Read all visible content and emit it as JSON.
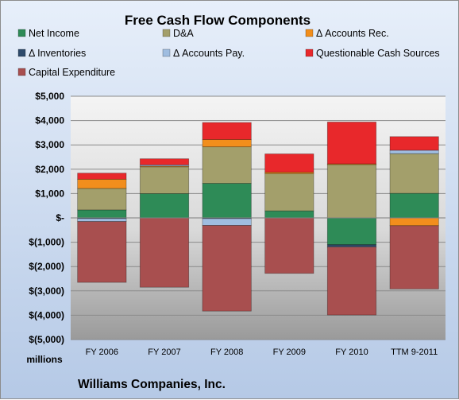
{
  "chart_data": {
    "type": "bar",
    "stacked": true,
    "title": "Free Cash Flow Components",
    "units": "millions",
    "footer": "Williams Companies, Inc.",
    "categories": [
      "FY 2006",
      "FY 2007",
      "FY 2008",
      "FY 2009",
      "FY 2010",
      "TTM 9-2011"
    ],
    "ylim": [
      -5000,
      5000
    ],
    "yticks": [
      5000,
      4000,
      3000,
      2000,
      1000,
      0,
      -1000,
      -2000,
      -3000,
      -4000,
      -5000
    ],
    "ytick_labels": [
      "$5,000",
      "$4,000",
      "$3,000",
      "$2,000",
      "$1,000",
      "$-",
      "$(1,000)",
      "$(2,000)",
      "$(3,000)",
      "$(4,000)",
      "$(5,000)"
    ],
    "grid": true,
    "legend_position": "top",
    "series": [
      {
        "name": "Net Income",
        "color": "#2e8b57",
        "values": [
          330,
          1000,
          1420,
          290,
          -1100,
          1010
        ]
      },
      {
        "name": "D&A",
        "color": "#a39f6b",
        "values": [
          880,
          1100,
          1500,
          1530,
          2200,
          1630
        ]
      },
      {
        "name": "Δ Accounts Rec.",
        "color": "#f28e1c",
        "values": [
          380,
          30,
          300,
          60,
          20,
          -320
        ]
      },
      {
        "name": "Δ Inventories",
        "color": "#2e4a6b",
        "values": [
          -30,
          0,
          -30,
          0,
          -80,
          0
        ]
      },
      {
        "name": "Δ Accounts Pay.",
        "color": "#9fbde0",
        "values": [
          -120,
          50,
          -280,
          0,
          -20,
          140
        ]
      },
      {
        "name": "Questionable Cash Sources",
        "color": "#e8282b",
        "values": [
          250,
          250,
          700,
          750,
          1720,
          560
        ]
      },
      {
        "name": "Capital Expenditure",
        "color": "#a84f4f",
        "values": [
          -2500,
          -2850,
          -3520,
          -2280,
          -2790,
          -2600
        ]
      }
    ]
  }
}
